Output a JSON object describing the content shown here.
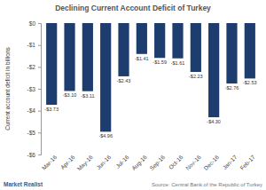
{
  "chart_data": {
    "type": "bar",
    "title": "Declining Current Account Deficit of Turkey",
    "y_label": "Current account deficit in billions",
    "source": "Source: Central Bank of the Republic of Turkey",
    "brand": "Market Realist",
    "categories": [
      "Mar-16",
      "Apr-16",
      "May-16",
      "Jun-16",
      "Jul-16",
      "Aug-16",
      "Sep-16",
      "Oct-16",
      "Nov-16",
      "Dec-16",
      "Jan-17",
      "Feb-17"
    ],
    "values": [
      -3.73,
      -3.1,
      -3.11,
      -4.96,
      -2.43,
      -1.41,
      -1.59,
      -1.61,
      -2.23,
      -4.3,
      -2.76,
      -2.53
    ],
    "value_labels": [
      "-$3.73",
      "-$3.10",
      "-$3.11",
      "-$4.96",
      "-$2.43",
      "-$1.41",
      "-$1.59",
      "-$1.61",
      "-$2.23",
      "-$4.30",
      "-$2.76",
      "-$2.53"
    ],
    "color": "#1c3d6e",
    "ylim": [
      -6,
      0
    ],
    "yticks": [
      {
        "value": 0,
        "label": "$0"
      },
      {
        "value": -1,
        "label": "-$1"
      },
      {
        "value": -2,
        "label": "-$2"
      },
      {
        "value": -3,
        "label": "-$3"
      },
      {
        "value": -4,
        "label": "-$4"
      },
      {
        "value": -5,
        "label": "-$5"
      },
      {
        "value": -6,
        "label": "-$6"
      }
    ],
    "grid": false,
    "data_labels": true
  }
}
